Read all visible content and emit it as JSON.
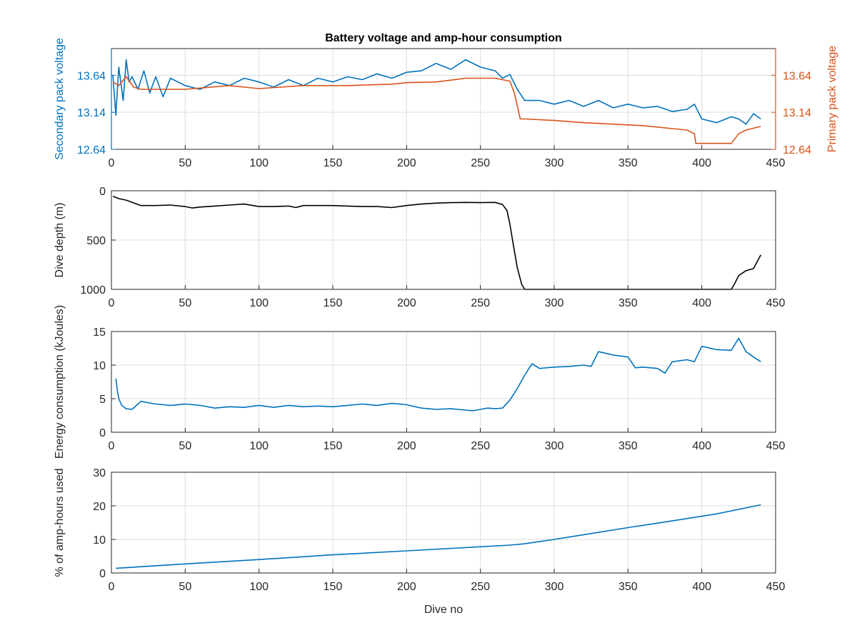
{
  "figure": {
    "background": "#ffffff",
    "frame_color": "#262626",
    "grid_color": "#dcdcdc"
  },
  "chart_data": [
    {
      "type": "line",
      "title": "Battery voltage and amp-hour consumption",
      "xlabel": "",
      "ylabel": "Secondary pack voltage",
      "ylabel_right": "Primary pack voltage",
      "xlim": [
        0,
        450
      ],
      "ylim": [
        12.64,
        14.0
      ],
      "ylim_right": [
        12.64,
        14.0
      ],
      "x_ticks": [
        0,
        50,
        100,
        150,
        200,
        250,
        300,
        350,
        400,
        450
      ],
      "y_ticks": [
        "12.64",
        "13.14",
        "13.64"
      ],
      "y_ticks_right": [
        "12.64",
        "13.14",
        "13.64"
      ],
      "y_tick_values": [
        12.64,
        13.14,
        13.64
      ],
      "left_color": "#0072bd",
      "right_color": "#d95319",
      "grid": true,
      "series": [
        {
          "axis": "left",
          "color": "#0072bd",
          "x": [
            1,
            3,
            5,
            8,
            10,
            12,
            14,
            18,
            22,
            26,
            30,
            35,
            40,
            50,
            60,
            70,
            80,
            90,
            100,
            110,
            120,
            130,
            140,
            150,
            160,
            170,
            180,
            190,
            200,
            210,
            220,
            230,
            240,
            250,
            260,
            265,
            270,
            275,
            280,
            290,
            300,
            310,
            320,
            330,
            340,
            350,
            360,
            370,
            380,
            390,
            395,
            400,
            410,
            420,
            425,
            430,
            435,
            440
          ],
          "y": [
            13.64,
            13.1,
            13.75,
            13.3,
            13.85,
            13.55,
            13.62,
            13.45,
            13.7,
            13.4,
            13.62,
            13.35,
            13.6,
            13.5,
            13.45,
            13.55,
            13.5,
            13.6,
            13.55,
            13.48,
            13.58,
            13.5,
            13.6,
            13.55,
            13.62,
            13.58,
            13.66,
            13.6,
            13.68,
            13.7,
            13.8,
            13.72,
            13.85,
            13.75,
            13.7,
            13.6,
            13.65,
            13.45,
            13.3,
            13.3,
            13.25,
            13.3,
            13.22,
            13.3,
            13.2,
            13.25,
            13.2,
            13.22,
            13.15,
            13.18,
            13.25,
            13.05,
            13.0,
            13.08,
            13.05,
            12.98,
            13.12,
            13.05
          ]
        },
        {
          "axis": "right",
          "color": "#d95319",
          "x": [
            1,
            5,
            10,
            15,
            20,
            30,
            50,
            80,
            100,
            130,
            160,
            190,
            200,
            220,
            240,
            260,
            270,
            273,
            277,
            280,
            300,
            320,
            340,
            360,
            380,
            390,
            395,
            396,
            400,
            410,
            420,
            425,
            430,
            440
          ],
          "y": [
            13.55,
            13.5,
            13.62,
            13.48,
            13.45,
            13.45,
            13.45,
            13.5,
            13.46,
            13.5,
            13.5,
            13.52,
            13.54,
            13.55,
            13.6,
            13.6,
            13.56,
            13.4,
            13.05,
            13.05,
            13.03,
            13.0,
            12.98,
            12.96,
            12.92,
            12.9,
            12.85,
            12.72,
            12.72,
            12.72,
            12.72,
            12.85,
            12.9,
            12.95
          ]
        }
      ]
    },
    {
      "type": "line",
      "title": "",
      "xlabel": "",
      "ylabel": "Dive depth (m)",
      "xlim": [
        0,
        450
      ],
      "ylim": [
        0,
        1000
      ],
      "y_reversed": true,
      "x_ticks": [
        0,
        50,
        100,
        150,
        200,
        250,
        300,
        350,
        400,
        450
      ],
      "y_ticks": [
        0,
        500,
        1000
      ],
      "grid": true,
      "series": [
        {
          "color": "#000000",
          "x": [
            1,
            5,
            10,
            20,
            30,
            40,
            50,
            55,
            60,
            70,
            80,
            90,
            100,
            110,
            120,
            125,
            130,
            140,
            150,
            160,
            170,
            180,
            190,
            200,
            210,
            220,
            230,
            240,
            250,
            260,
            265,
            268,
            270,
            272,
            275,
            278,
            280,
            290,
            300,
            320,
            340,
            360,
            380,
            400,
            405,
            410,
            415,
            418,
            420,
            422,
            425,
            430,
            435,
            440
          ],
          "y": [
            55,
            80,
            95,
            150,
            150,
            145,
            160,
            175,
            165,
            155,
            145,
            135,
            160,
            160,
            155,
            170,
            150,
            150,
            150,
            155,
            160,
            160,
            170,
            150,
            135,
            125,
            120,
            118,
            120,
            118,
            140,
            200,
            340,
            520,
            780,
            950,
            1000,
            1000,
            1000,
            1000,
            1000,
            1000,
            1000,
            1000,
            1000,
            1000,
            1000,
            1000,
            1000,
            950,
            860,
            810,
            790,
            650
          ]
        }
      ]
    },
    {
      "type": "line",
      "title": "",
      "xlabel": "",
      "ylabel": "Energy consumption (kJoules)",
      "xlim": [
        0,
        450
      ],
      "ylim": [
        0,
        15
      ],
      "x_ticks": [
        0,
        50,
        100,
        150,
        200,
        250,
        300,
        350,
        400,
        450
      ],
      "y_ticks": [
        0,
        5,
        10,
        15
      ],
      "grid": true,
      "series": [
        {
          "color": "#0072bd",
          "x": [
            3,
            4,
            5,
            7,
            10,
            14,
            20,
            30,
            40,
            50,
            60,
            70,
            80,
            90,
            100,
            110,
            120,
            130,
            140,
            150,
            160,
            170,
            180,
            190,
            200,
            210,
            220,
            230,
            240,
            245,
            250,
            255,
            260,
            265,
            270,
            275,
            280,
            285,
            290,
            300,
            310,
            320,
            325,
            330,
            340,
            350,
            355,
            360,
            370,
            375,
            380,
            390,
            395,
            400,
            410,
            420,
            425,
            430,
            435,
            440
          ],
          "y": [
            8.0,
            6.2,
            5.0,
            4.0,
            3.5,
            3.4,
            4.6,
            4.2,
            4.0,
            4.2,
            4.0,
            3.6,
            3.8,
            3.7,
            4.0,
            3.7,
            4.0,
            3.8,
            3.9,
            3.8,
            4.0,
            4.2,
            4.0,
            4.3,
            4.1,
            3.6,
            3.4,
            3.5,
            3.3,
            3.2,
            3.4,
            3.6,
            3.5,
            3.6,
            4.8,
            6.5,
            8.5,
            10.2,
            9.5,
            9.7,
            9.8,
            10.0,
            9.8,
            12.0,
            11.5,
            11.2,
            9.6,
            9.7,
            9.5,
            8.8,
            10.5,
            10.8,
            10.5,
            12.8,
            12.3,
            12.2,
            14.0,
            12.0,
            11.2,
            10.5
          ]
        }
      ]
    },
    {
      "type": "line",
      "title": "",
      "xlabel": "Dive no",
      "ylabel": "% of amp-hours used",
      "xlim": [
        0,
        450
      ],
      "ylim": [
        0,
        30
      ],
      "x_ticks": [
        0,
        50,
        100,
        150,
        200,
        250,
        300,
        350,
        400,
        450
      ],
      "y_ticks": [
        0,
        10,
        20,
        30
      ],
      "grid": true,
      "series": [
        {
          "color": "#0072bd",
          "x": [
            3,
            50,
            100,
            150,
            200,
            250,
            270,
            280,
            300,
            320,
            350,
            380,
            410,
            440
          ],
          "y": [
            1.4,
            2.7,
            4.0,
            5.4,
            6.6,
            7.8,
            8.3,
            8.7,
            10.0,
            11.4,
            13.5,
            15.5,
            17.6,
            20.3
          ]
        }
      ]
    }
  ]
}
